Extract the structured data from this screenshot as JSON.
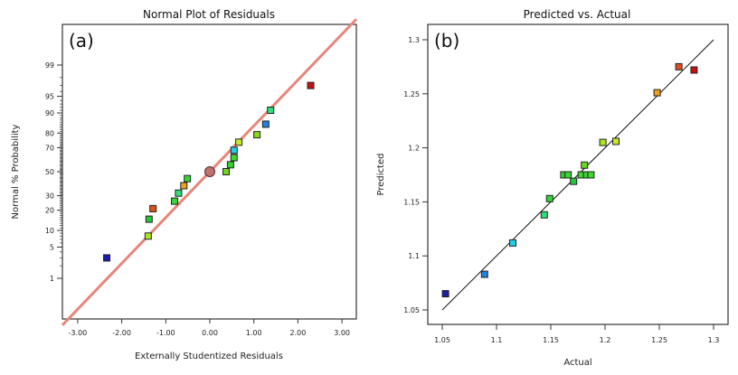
{
  "chart_data": [
    {
      "type": "scatter",
      "panel_label": "(a)",
      "title": "Normal Plot of Residuals",
      "xlabel": "Externally Studentized Residuals",
      "ylabel": "Normal % Probability",
      "xlim": [
        -3.35,
        3.35
      ],
      "x_ticks": [
        "-3.00",
        "-2.00",
        "-1.00",
        "0.00",
        "1.00",
        "2.00",
        "3.00"
      ],
      "x_tick_values": [
        -3,
        -2,
        -1,
        0,
        1,
        2,
        3
      ],
      "y_ticks": [
        "1",
        "5",
        "10",
        "20",
        "30",
        "50",
        "70",
        "80",
        "90",
        "95",
        "99"
      ],
      "y_tick_values": [
        1,
        5,
        10,
        20,
        30,
        50,
        70,
        80,
        90,
        95,
        99
      ],
      "fit_line_color": "#e8857a",
      "points": [
        {
          "x": -2.34,
          "y": 3,
          "color": "#1a1fb0"
        },
        {
          "x": -1.4,
          "y": 8,
          "color": "#a8e81c"
        },
        {
          "x": -1.38,
          "y": 15,
          "color": "#22c83a"
        },
        {
          "x": -1.29,
          "y": 21,
          "color": "#e0501a"
        },
        {
          "x": -0.8,
          "y": 26,
          "color": "#3ad33a"
        },
        {
          "x": -0.71,
          "y": 32,
          "color": "#2ee07a"
        },
        {
          "x": -0.59,
          "y": 38,
          "color": "#f0a020"
        },
        {
          "x": -0.51,
          "y": 44,
          "color": "#36d63a"
        },
        {
          "x": 0.0,
          "y": 50,
          "color": "#c07070",
          "center": true
        },
        {
          "x": 0.37,
          "y": 50,
          "color": "#6cd81e"
        },
        {
          "x": 0.47,
          "y": 56,
          "color": "#32d232"
        },
        {
          "x": 0.55,
          "y": 62,
          "color": "#40d830"
        },
        {
          "x": 0.55,
          "y": 68,
          "color": "#20d0e8"
        },
        {
          "x": 0.66,
          "y": 74,
          "color": "#c8e828"
        },
        {
          "x": 1.07,
          "y": 79,
          "color": "#8ad81c"
        },
        {
          "x": 1.27,
          "y": 85,
          "color": "#2080e0"
        },
        {
          "x": 1.38,
          "y": 91,
          "color": "#2ee07a"
        },
        {
          "x": 2.29,
          "y": 97,
          "color": "#c81010"
        }
      ]
    },
    {
      "type": "scatter",
      "panel_label": "(b)",
      "title": "Predicted vs. Actual",
      "xlabel": "Actual",
      "ylabel": "Predicted",
      "xlim": [
        1.037,
        1.313
      ],
      "ylim": [
        1.036,
        1.314
      ],
      "x_ticks": [
        "1.05",
        "1.1",
        "1.15",
        "1.2",
        "1.25",
        "1.3"
      ],
      "x_tick_values": [
        1.05,
        1.1,
        1.15,
        1.2,
        1.25,
        1.3
      ],
      "y_ticks": [
        "1.05",
        "1.1",
        "1.15",
        "1.2",
        "1.25",
        "1.3"
      ],
      "y_tick_values": [
        1.05,
        1.1,
        1.15,
        1.2,
        1.25,
        1.3
      ],
      "line_color": "#111111",
      "points": [
        {
          "x": 1.053,
          "y": 1.065,
          "color": "#1a1fb0"
        },
        {
          "x": 1.089,
          "y": 1.083,
          "color": "#2080e0"
        },
        {
          "x": 1.115,
          "y": 1.112,
          "color": "#20d0e8"
        },
        {
          "x": 1.144,
          "y": 1.138,
          "color": "#2ee07a"
        },
        {
          "x": 1.149,
          "y": 1.153,
          "color": "#36d63a"
        },
        {
          "x": 1.162,
          "y": 1.175,
          "color": "#32d232"
        },
        {
          "x": 1.166,
          "y": 1.175,
          "color": "#3ad33a"
        },
        {
          "x": 1.171,
          "y": 1.169,
          "color": "#22c83a"
        },
        {
          "x": 1.178,
          "y": 1.175,
          "color": "#40d830"
        },
        {
          "x": 1.181,
          "y": 1.184,
          "color": "#6cd81e"
        },
        {
          "x": 1.183,
          "y": 1.175,
          "color": "#3ad33a"
        },
        {
          "x": 1.187,
          "y": 1.175,
          "color": "#40d830"
        },
        {
          "x": 1.198,
          "y": 1.205,
          "color": "#a8e81c"
        },
        {
          "x": 1.21,
          "y": 1.206,
          "color": "#c8e828"
        },
        {
          "x": 1.248,
          "y": 1.251,
          "color": "#f0a020"
        },
        {
          "x": 1.268,
          "y": 1.275,
          "color": "#e0501a"
        },
        {
          "x": 1.282,
          "y": 1.272,
          "color": "#c81010"
        }
      ]
    }
  ]
}
